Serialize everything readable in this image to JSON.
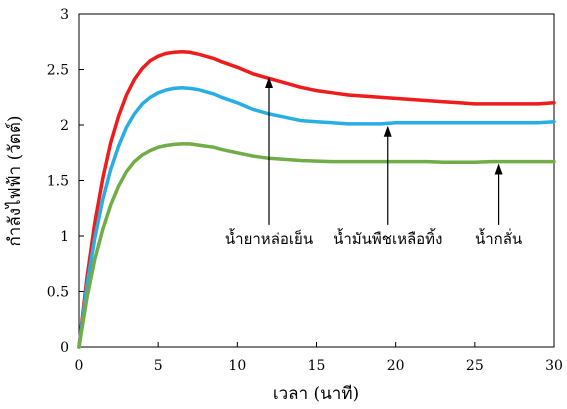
{
  "chart_data": {
    "type": "line",
    "xlabel": "เวลา (นาที)",
    "ylabel": "กำลังไฟฟ้า (วัตต์)",
    "xlim": [
      0,
      30
    ],
    "ylim": [
      0,
      3
    ],
    "xticks": [
      0,
      5,
      10,
      15,
      20,
      25,
      30
    ],
    "yticks": [
      0,
      0.5,
      1,
      1.5,
      2,
      2.5,
      3
    ],
    "grid": false,
    "series": [
      {
        "name": "น้ำยาหล่อเย็น",
        "color": "#ee1c1c",
        "x": [
          0,
          0.5,
          1,
          1.5,
          2,
          2.5,
          3,
          3.5,
          4,
          4.5,
          5,
          5.5,
          6,
          6.5,
          7,
          7.5,
          8,
          8.5,
          9,
          10,
          11,
          12,
          13,
          14,
          15,
          16,
          17,
          18,
          19,
          20,
          21,
          22,
          23,
          24,
          25,
          26,
          27,
          28,
          29,
          30
        ],
        "y": [
          0,
          0.62,
          1.12,
          1.52,
          1.84,
          2.08,
          2.27,
          2.41,
          2.51,
          2.58,
          2.62,
          2.645,
          2.655,
          2.66,
          2.655,
          2.64,
          2.62,
          2.6,
          2.57,
          2.52,
          2.46,
          2.42,
          2.38,
          2.34,
          2.31,
          2.29,
          2.27,
          2.26,
          2.25,
          2.24,
          2.23,
          2.22,
          2.21,
          2.2,
          2.19,
          2.19,
          2.19,
          2.19,
          2.19,
          2.2
        ]
      },
      {
        "name": "น้ำมันพืชเหลือทิ้ง",
        "color": "#29aee4",
        "x": [
          0,
          0.5,
          1,
          1.5,
          2,
          2.5,
          3,
          3.5,
          4,
          4.5,
          5,
          5.5,
          6,
          6.5,
          7,
          7.5,
          8,
          8.5,
          9,
          10,
          11,
          12,
          13,
          14,
          15,
          16,
          17,
          18,
          19,
          20,
          21,
          22,
          23,
          24,
          25,
          26,
          27,
          28,
          29,
          30
        ],
        "y": [
          0,
          0.55,
          0.98,
          1.33,
          1.6,
          1.81,
          1.98,
          2.1,
          2.19,
          2.25,
          2.29,
          2.315,
          2.33,
          2.335,
          2.33,
          2.32,
          2.3,
          2.28,
          2.25,
          2.2,
          2.14,
          2.1,
          2.07,
          2.04,
          2.03,
          2.02,
          2.01,
          2.01,
          2.01,
          2.02,
          2.02,
          2.02,
          2.02,
          2.02,
          2.02,
          2.02,
          2.02,
          2.02,
          2.02,
          2.03
        ]
      },
      {
        "name": "น้ำกลั่น",
        "color": "#70ad47",
        "x": [
          0,
          0.5,
          1,
          1.5,
          2,
          2.5,
          3,
          3.5,
          4,
          4.5,
          5,
          5.5,
          6,
          6.5,
          7,
          7.5,
          8,
          8.5,
          9,
          10,
          11,
          12,
          13,
          14,
          15,
          16,
          17,
          18,
          19,
          20,
          21,
          22,
          23,
          24,
          25,
          26,
          27,
          28,
          29,
          30
        ],
        "y": [
          0,
          0.44,
          0.79,
          1.06,
          1.28,
          1.45,
          1.58,
          1.67,
          1.73,
          1.77,
          1.8,
          1.815,
          1.825,
          1.83,
          1.83,
          1.82,
          1.81,
          1.8,
          1.78,
          1.75,
          1.72,
          1.7,
          1.69,
          1.68,
          1.675,
          1.67,
          1.67,
          1.67,
          1.67,
          1.67,
          1.67,
          1.67,
          1.665,
          1.665,
          1.665,
          1.67,
          1.67,
          1.67,
          1.67,
          1.67
        ]
      }
    ],
    "annotations": [
      {
        "text": "น้ำยาหล่อเย็น",
        "arrow_x": 12,
        "arrow_y_tip": 2.46,
        "arrow_y_tail": 1.1
      },
      {
        "text": "น้ำมันพืชเหลือทิ้ง",
        "arrow_x": 19.5,
        "arrow_y_tip": 2.02,
        "arrow_y_tail": 1.1
      },
      {
        "text": "น้ำกลั่น",
        "arrow_x": 26.5,
        "arrow_y_tip": 1.68,
        "arrow_y_tail": 1.1
      }
    ]
  }
}
